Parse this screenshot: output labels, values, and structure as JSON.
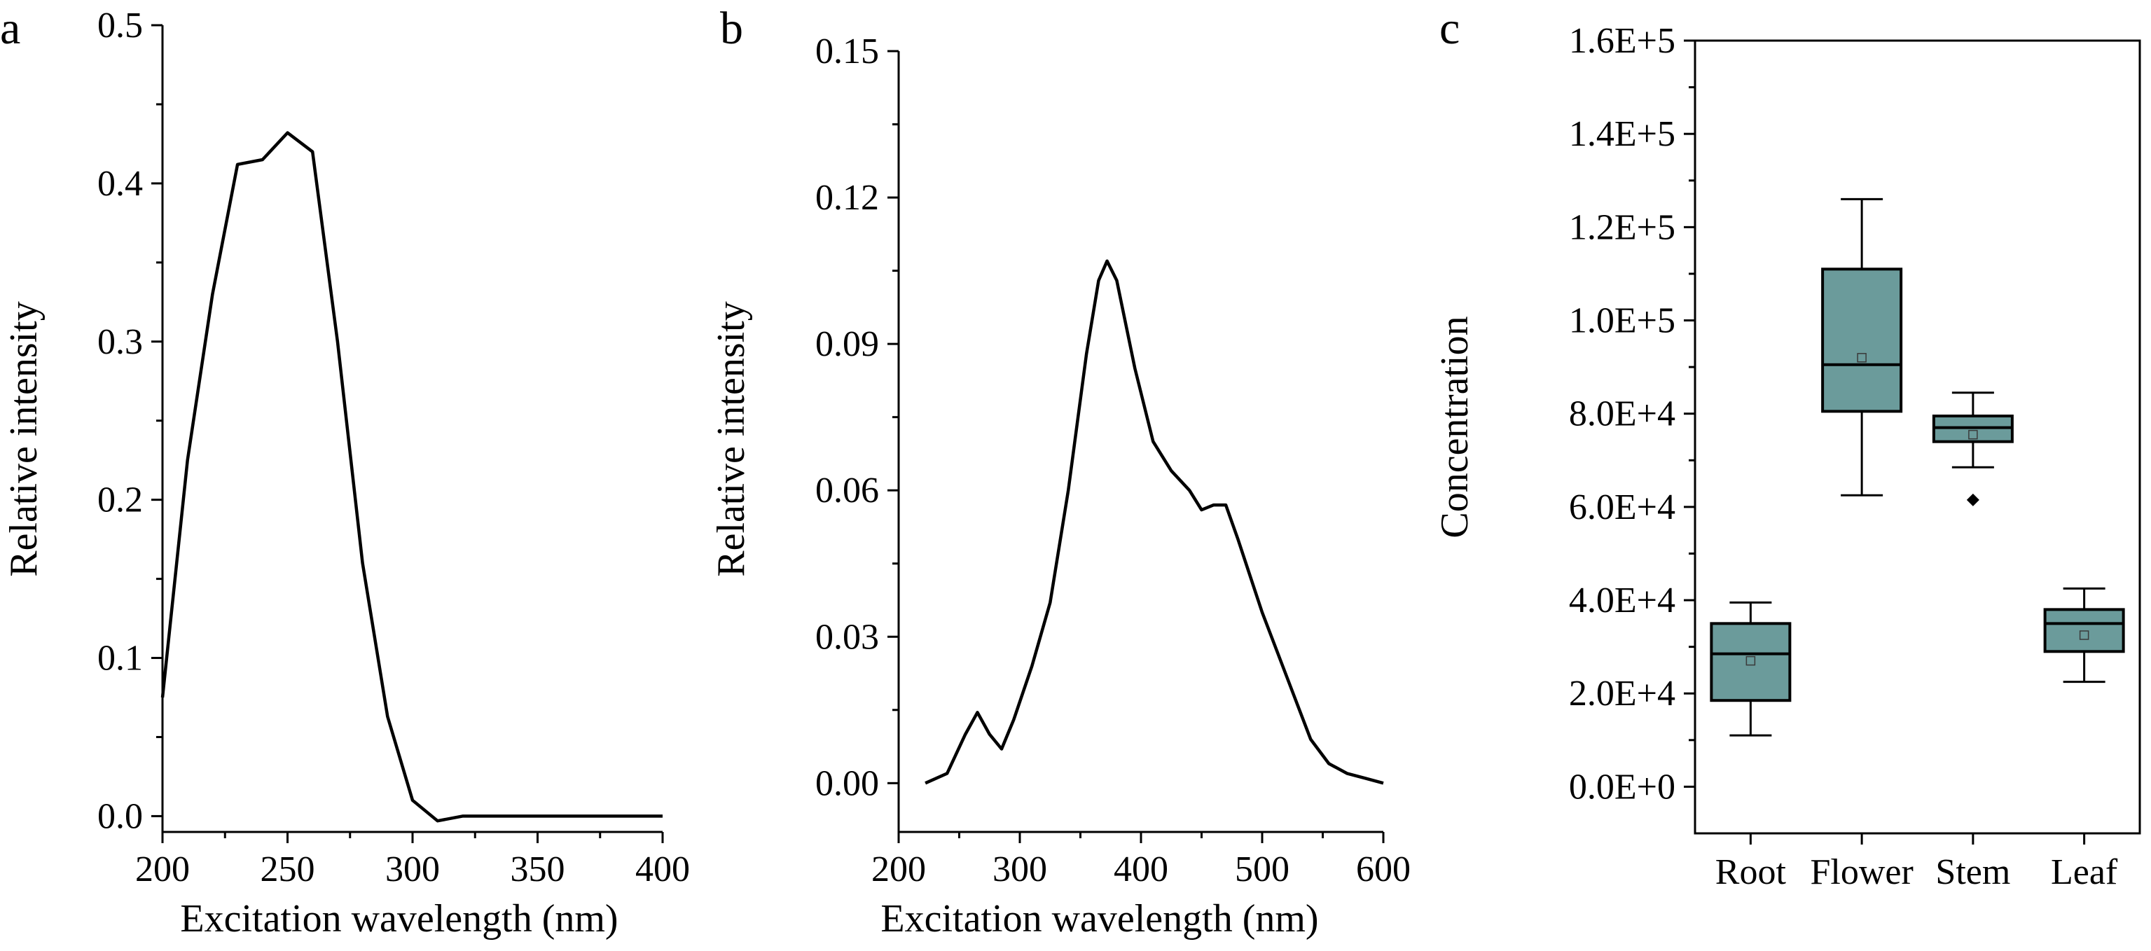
{
  "colors": {
    "box_fill": "#6b9b9b",
    "line": "#000000",
    "background": "#ffffff"
  },
  "chart_data": [
    {
      "panel": "a",
      "type": "line",
      "xlabel": "Excitation wavelength (nm)",
      "ylabel": "Relative intensity",
      "xlim": [
        200,
        400
      ],
      "ylim": [
        -0.01,
        0.5
      ],
      "xticks": [
        200,
        250,
        300,
        350,
        400
      ],
      "xtick_labels": [
        "200",
        "250",
        "300",
        "350",
        "400"
      ],
      "yticks": [
        0.0,
        0.1,
        0.2,
        0.3,
        0.4,
        0.5
      ],
      "ytick_labels": [
        "0.0",
        "0.1",
        "0.2",
        "0.3",
        "0.4",
        "0.5"
      ],
      "series": [
        {
          "x": [
            200,
            210,
            220,
            230,
            240,
            250,
            260,
            270,
            280,
            290,
            300,
            310,
            320,
            330,
            340,
            350,
            360,
            370,
            380,
            390,
            400
          ],
          "y": [
            0.075,
            0.225,
            0.33,
            0.412,
            0.415,
            0.432,
            0.42,
            0.3,
            0.16,
            0.063,
            0.01,
            -0.003,
            0.0,
            0.0,
            0.0,
            0.0,
            0.0,
            0.0,
            0.0,
            0.0,
            0.0
          ]
        }
      ]
    },
    {
      "panel": "b",
      "type": "line",
      "xlabel": "Excitation wavelength (nm)",
      "ylabel": "Relative intensity",
      "xlim": [
        200,
        600
      ],
      "ylim": [
        -0.01,
        0.15
      ],
      "xticks": [
        200,
        300,
        400,
        500,
        600
      ],
      "xtick_labels": [
        "200",
        "300",
        "400",
        "500",
        "600"
      ],
      "yticks": [
        0.0,
        0.03,
        0.06,
        0.09,
        0.12,
        0.15
      ],
      "ytick_labels": [
        "0.00",
        "0.03",
        "0.06",
        "0.09",
        "0.12",
        "0.15"
      ],
      "series": [
        {
          "x": [
            222,
            240,
            255,
            265,
            275,
            285,
            295,
            310,
            325,
            340,
            355,
            365,
            372,
            380,
            395,
            410,
            425,
            440,
            450,
            460,
            470,
            480,
            500,
            520,
            540,
            555,
            570,
            585,
            600
          ],
          "y": [
            0.0,
            0.002,
            0.01,
            0.0145,
            0.01,
            0.007,
            0.013,
            0.024,
            0.037,
            0.06,
            0.088,
            0.103,
            0.107,
            0.103,
            0.085,
            0.07,
            0.064,
            0.06,
            0.056,
            0.057,
            0.057,
            0.05,
            0.035,
            0.022,
            0.009,
            0.004,
            0.002,
            0.001,
            0.0
          ]
        }
      ]
    },
    {
      "panel": "c",
      "type": "box",
      "xlabel": "",
      "ylabel": "Concentration",
      "ylim": [
        -10000,
        160000
      ],
      "yticks": [
        0,
        20000,
        40000,
        60000,
        80000,
        100000,
        120000,
        140000,
        160000
      ],
      "ytick_labels": [
        "0.0E+0",
        "2.0E+4",
        "4.0E+4",
        "6.0E+4",
        "8.0E+4",
        "1.0E+5",
        "1.2E+5",
        "1.4E+5",
        "1.6E+5"
      ],
      "categories": [
        "Root",
        "Flower",
        "Stem",
        "Leaf"
      ],
      "boxes": [
        {
          "whisker_low": 11000,
          "q1": 18500,
          "median": 28500,
          "q3": 35000,
          "whisker_high": 39500,
          "mean": 27000,
          "outliers": []
        },
        {
          "whisker_low": 62500,
          "q1": 80500,
          "median": 90500,
          "q3": 111000,
          "whisker_high": 126000,
          "mean": 92000,
          "outliers": []
        },
        {
          "whisker_low": 68500,
          "q1": 74000,
          "median": 77000,
          "q3": 79500,
          "whisker_high": 84500,
          "mean": 75500,
          "outliers": [
            61500
          ]
        },
        {
          "whisker_low": 22500,
          "q1": 29000,
          "median": 35000,
          "q3": 38000,
          "whisker_high": 42500,
          "mean": 32500,
          "outliers": []
        }
      ]
    }
  ]
}
